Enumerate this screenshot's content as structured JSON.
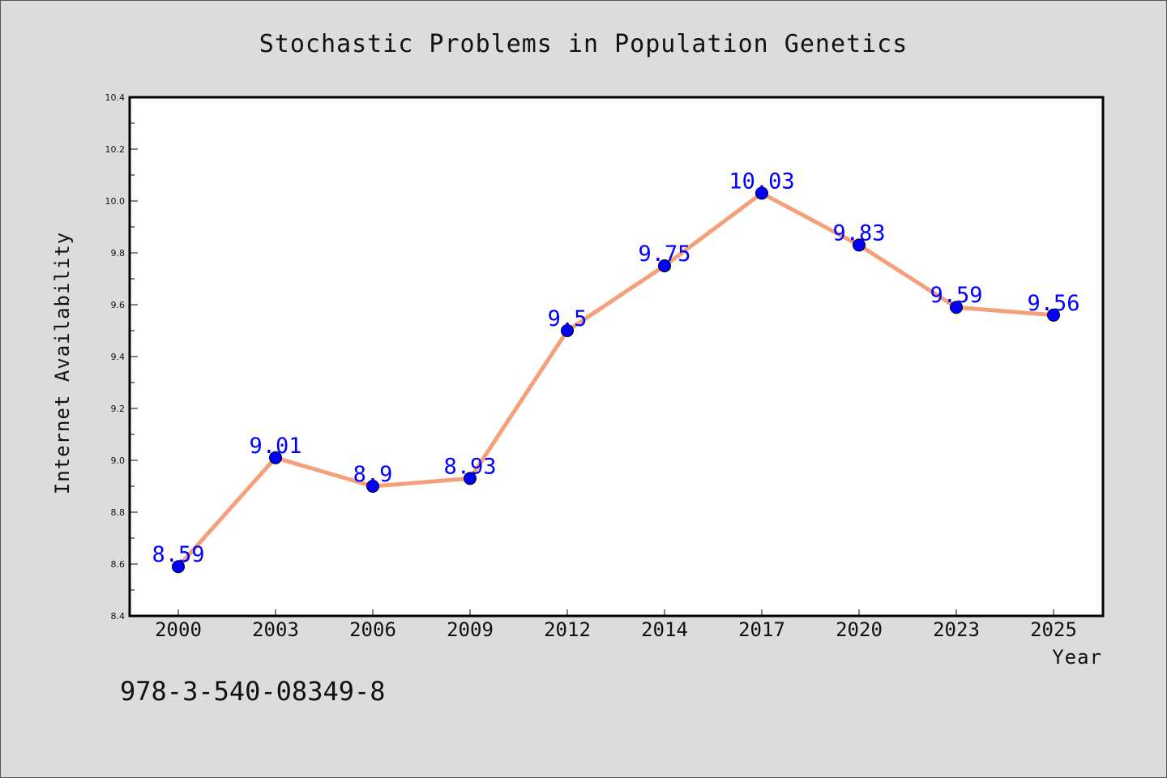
{
  "chart_data": {
    "type": "line",
    "title": "Stochastic Problems in Population Genetics",
    "xlabel": "Year",
    "ylabel": "Internet Availability",
    "categories": [
      "2000",
      "2003",
      "2006",
      "2009",
      "2012",
      "2014",
      "2017",
      "2020",
      "2023",
      "2025"
    ],
    "series": [
      {
        "values": [
          8.59,
          9.01,
          8.9,
          8.93,
          9.5,
          9.75,
          10.03,
          9.83,
          9.59,
          9.56
        ],
        "labels": [
          "8.59",
          "9.01",
          "8.9",
          "8.93",
          "9.5",
          "9.75",
          "10.03",
          "9.83",
          "9.59",
          "9.56"
        ],
        "line_color": "#f4a07a",
        "marker_color": "#0000ff"
      }
    ],
    "ylim": [
      8.4,
      10.4
    ],
    "yticks": [
      "8.4",
      "8.6",
      "8.8",
      "9.0",
      "9.2",
      "9.4",
      "9.6",
      "9.8",
      "10.0",
      "10.2",
      "10.4"
    ],
    "grid": false,
    "legend": "none"
  },
  "footer": {
    "isbn": "978-3-540-08349-8"
  }
}
